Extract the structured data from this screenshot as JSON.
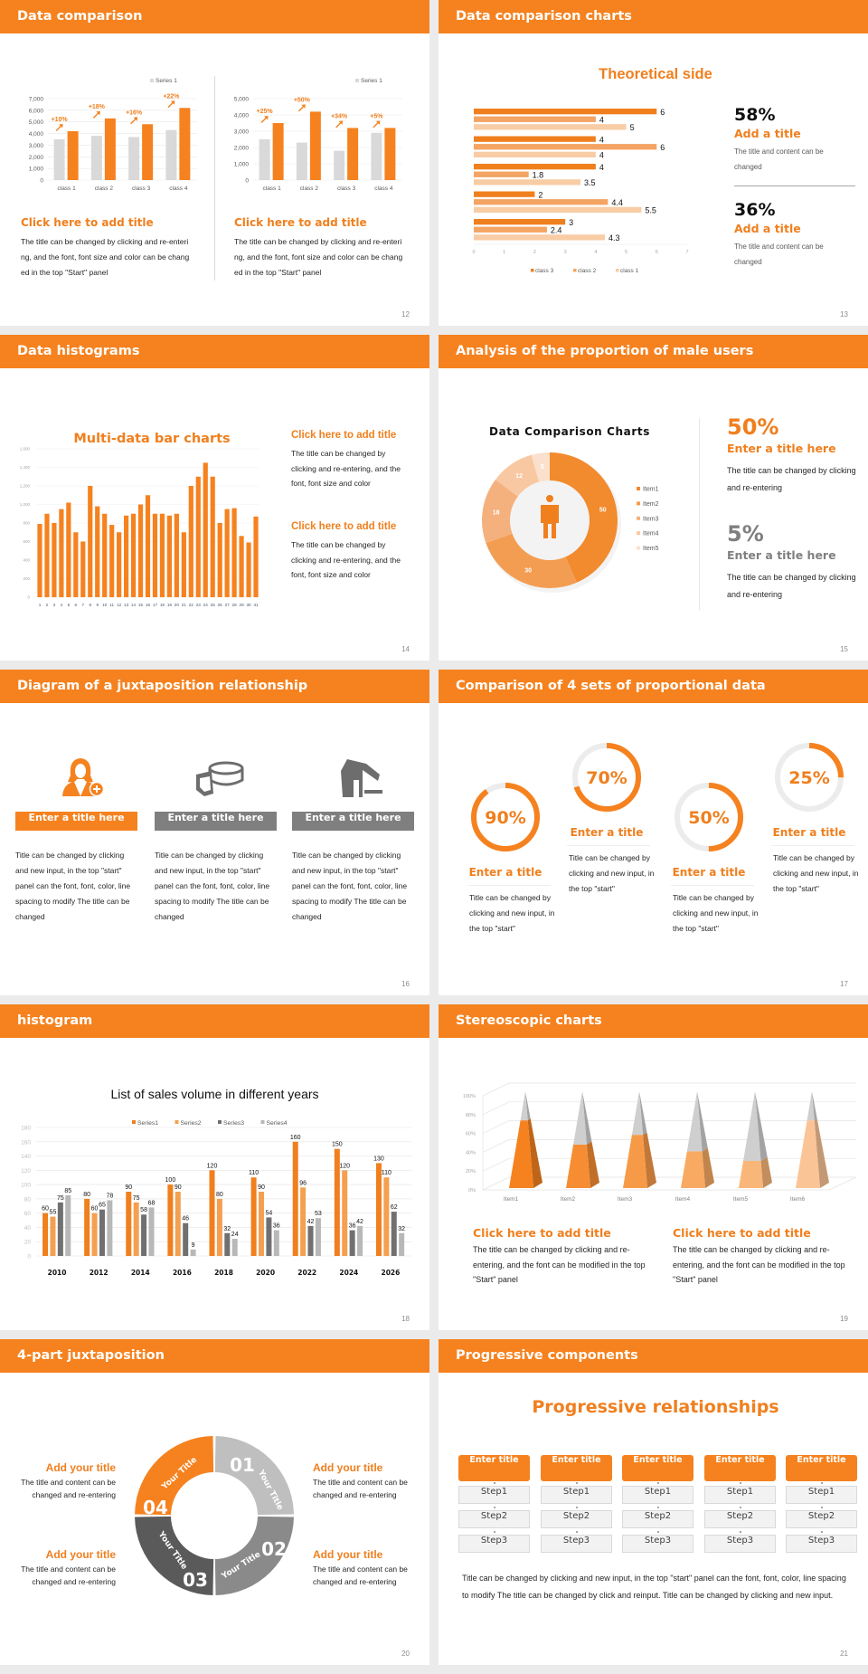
{
  "colors": {
    "accent": "#f5821f",
    "dark_gray": "#595959",
    "mid_gray": "#7f7f7f",
    "light_gray": "#bfbfbf",
    "background": "#ebebeb"
  },
  "slides": [
    {
      "title": "Data comparison",
      "page": "12",
      "blocks": [
        {
          "heading": "Click here to add title",
          "body": "The title can be changed by clicking and re-entering, and the font, font size and color can be changed in the top \"Start\" panel"
        },
        {
          "heading": "Click here to add title",
          "body": "The title can be changed by clicking and re-entering, and the font, font size and color can be changed in the top \"Start\" panel"
        }
      ]
    },
    {
      "title": "Data comparison charts",
      "page": "13",
      "stats": [
        {
          "value": "58%",
          "heading": "Add a title",
          "body": "The title and content can be changed"
        },
        {
          "value": "36%",
          "heading": "Add a title",
          "body": "The title and content can be changed"
        }
      ]
    },
    {
      "title": "Data histograms",
      "page": "14",
      "blocks": [
        {
          "heading": "Click here to add title",
          "body": "The title can be changed by clicking and re-entering, and the font, font size and color"
        },
        {
          "heading": "Click here to add title",
          "body": "The title can be changed by clicking and re-entering, and the font, font size and color"
        }
      ]
    },
    {
      "title": "Analysis of the proportion of male users",
      "page": "15",
      "stats": [
        {
          "value": "50%",
          "heading": "Enter a title here",
          "body": "The title can be changed by clicking and re-entering"
        },
        {
          "value": "5%",
          "heading": "Enter a title here",
          "body": "The title can be changed by clicking and re-entering"
        }
      ]
    },
    {
      "title": "Diagram of a juxtaposition relationship",
      "page": "16",
      "items": [
        {
          "icon": "female-user-add-icon",
          "label": "Enter a title here",
          "body": "Title can be changed by clicking and new input, in the top \"start\" panel can the font, font, color, line spacing to modify The title can be changed"
        },
        {
          "icon": "pie-chart-icon",
          "label": "Enter a title here",
          "body": "Title can be changed by clicking and new input, in the top \"start\" panel can the font, font, color, line spacing to modify The title can be changed"
        },
        {
          "icon": "shop-icon",
          "label": "Enter a title here",
          "body": "Title can be changed by clicking and new input, in the top \"start\" panel can the font, font, color, line spacing to modify The title can be changed"
        }
      ]
    },
    {
      "title": "Comparison of 4 sets of proportional data",
      "page": "17",
      "items": [
        {
          "percent": 90,
          "value": "90%",
          "heading": "Enter a title",
          "body": "Title can be changed by clicking and new input, in the top \"start\""
        },
        {
          "percent": 70,
          "value": "70%",
          "heading": "Enter a title",
          "body": "Title can be changed by clicking and new input, in the top \"start\""
        },
        {
          "percent": 50,
          "value": "50%",
          "heading": "Enter a title",
          "body": "Title can be changed by clicking and new input, in the top \"start\""
        },
        {
          "percent": 25,
          "value": "25%",
          "heading": "Enter a title",
          "body": "Title can be changed by clicking and new input, in the top \"start\""
        }
      ]
    },
    {
      "title": "histogram",
      "page": "18"
    },
    {
      "title": "Stereoscopic charts",
      "page": "19",
      "blocks": [
        {
          "heading": "Click here to add title",
          "body": "The title can be changed by clicking and re-entering, and the font can be modified in the top \"Start\" panel"
        },
        {
          "heading": "Click here to add title",
          "body": "The title can be changed by clicking and re-entering, and the font can be modified in the top \"Start\" panel"
        }
      ]
    },
    {
      "title": "4-part juxtaposition",
      "page": "20",
      "segments": [
        {
          "number": "01",
          "label": "Your Title",
          "color": "#bfbfbf"
        },
        {
          "number": "02",
          "label": "Your Title",
          "color": "#8a8a8a"
        },
        {
          "number": "03",
          "label": "Your Title",
          "color": "#5a5a5a"
        },
        {
          "number": "04",
          "label": "Your Title",
          "color": "#f5821f"
        }
      ],
      "blocks": [
        {
          "heading": "Add your title",
          "body": "The title and content can be changed and re-entering"
        },
        {
          "heading": "Add your title",
          "body": "The title and content can be changed and re-entering"
        },
        {
          "heading": "Add your title",
          "body": "The title and content can be changed and re-entering"
        },
        {
          "heading": "Add your title",
          "body": "The title and content can be changed and re-entering"
        }
      ]
    },
    {
      "title": "Progressive components",
      "page": "21",
      "heading": "Progressive relationships",
      "columns": [
        {
          "title": "Enter title",
          "steps": [
            "Step1",
            "Step2",
            "Step3"
          ]
        },
        {
          "title": "Enter title",
          "steps": [
            "Step1",
            "Step2",
            "Step3"
          ]
        },
        {
          "title": "Enter title",
          "steps": [
            "Step1",
            "Step2",
            "Step3"
          ]
        },
        {
          "title": "Enter title",
          "steps": [
            "Step1",
            "Step2",
            "Step3"
          ]
        },
        {
          "title": "Enter title",
          "steps": [
            "Step1",
            "Step2",
            "Step3"
          ]
        }
      ],
      "body": "Title can be changed by clicking and new input, in the top \"start\" panel can the font, font, color, line spacing to modify The title can be changed by click and reinput. Title can be changed by clicking and new input."
    }
  ],
  "chart_data": [
    {
      "type": "bar",
      "categories": [
        "class 1",
        "class 2",
        "class 3",
        "class 4"
      ],
      "series": [
        {
          "name": "Series 1",
          "values": [
            3500,
            3800,
            3700,
            4300
          ]
        },
        {
          "values": [
            4200,
            5300,
            4800,
            6200
          ]
        }
      ],
      "annotations": [
        "+10%",
        "+18%",
        "+16%",
        "+22%"
      ],
      "ylim": [
        0,
        7000
      ],
      "yticks": [
        "0",
        "1,000",
        "2,000",
        "3,000",
        "4,000",
        "5,000",
        "6,000",
        "7,000"
      ],
      "grid": true,
      "legend": "top-right",
      "colors": [
        "#d9d9d9",
        "#f5821f"
      ]
    },
    {
      "type": "bar",
      "categories": [
        "class 1",
        "class 2",
        "class 3",
        "class 4"
      ],
      "series": [
        {
          "name": "Series 1",
          "values": [
            2500,
            2300,
            1800,
            2900
          ]
        },
        {
          "values": [
            3500,
            4200,
            3200,
            3200
          ]
        }
      ],
      "annotations": [
        "+25%",
        "+50%",
        "+34%",
        "+5%"
      ],
      "ylim": [
        0,
        5000
      ],
      "yticks": [
        "0",
        "1,000",
        "2,000",
        "3,000",
        "4,000",
        "5,000"
      ],
      "grid": true,
      "legend": "top-right",
      "colors": [
        "#d9d9d9",
        "#f5821f"
      ]
    },
    {
      "type": "bar",
      "orientation": "horizontal",
      "title": "Theoretical side",
      "series": [
        {
          "name": "class 3",
          "values": [
            6,
            4,
            4,
            2,
            3
          ]
        },
        {
          "name": "class 2",
          "values": [
            4,
            6,
            1.8,
            4.4,
            2.4
          ]
        },
        {
          "name": "class 1",
          "values": [
            5,
            4,
            3.5,
            5.5,
            4.3
          ]
        }
      ],
      "xlim": [
        0,
        7
      ],
      "xticks": [
        "0",
        "1",
        "2",
        "3",
        "4",
        "5",
        "6",
        "7"
      ],
      "legend": "bottom",
      "colors": [
        "#f07f1e",
        "#f4a463",
        "#f8cca5"
      ]
    },
    {
      "type": "bar",
      "title": "Multi-data bar charts",
      "categories": [
        "1",
        "2",
        "3",
        "4",
        "5",
        "6",
        "7",
        "8",
        "9",
        "10",
        "11",
        "12",
        "13",
        "14",
        "15",
        "16",
        "17",
        "18",
        "19",
        "20",
        "21",
        "22",
        "23",
        "24",
        "25",
        "26",
        "27",
        "28",
        "29",
        "30",
        "31"
      ],
      "values": [
        790,
        900,
        800,
        950,
        1020,
        700,
        600,
        1200,
        980,
        900,
        780,
        700,
        880,
        900,
        1000,
        1100,
        900,
        900,
        880,
        900,
        700,
        1200,
        1300,
        1450,
        1300,
        800,
        950,
        960,
        660,
        590,
        870
      ],
      "ylim": [
        0,
        1600
      ],
      "yticks": [
        "0",
        "200",
        "400",
        "600",
        "800",
        "1,000",
        "1,200",
        "1,400",
        "1,600"
      ],
      "grid": true,
      "colors": [
        "#f5821f"
      ]
    },
    {
      "type": "pie",
      "style": "donut",
      "title": "Data Comparison Charts",
      "categories": [
        "Item1",
        "Item2",
        "Item3",
        "Item4",
        "Item5"
      ],
      "values": [
        50,
        30,
        18,
        12,
        5
      ],
      "legend": "right",
      "colors": [
        "#f28a2e",
        "#f39d52",
        "#f5b17d",
        "#f8c8a2",
        "#fbe1cd"
      ]
    },
    {
      "type": "bar",
      "title": "List of sales volume in different years",
      "categories": [
        "2010",
        "2012",
        "2014",
        "2016",
        "2018",
        "2020",
        "2022",
        "2024",
        "2026"
      ],
      "series": [
        {
          "name": "Series1",
          "values": [
            60,
            80,
            90,
            100,
            120,
            110,
            160,
            150,
            130
          ]
        },
        {
          "name": "Series2",
          "values": [
            55,
            60,
            75,
            90,
            80,
            90,
            96,
            120,
            110
          ]
        },
        {
          "name": "Series3",
          "values": [
            75,
            65,
            58,
            46,
            32,
            54,
            42,
            36,
            62
          ]
        },
        {
          "name": "Series4",
          "values": [
            85,
            78,
            68,
            9,
            24,
            36,
            53,
            42,
            32
          ]
        }
      ],
      "ylim": [
        0,
        180
      ],
      "yticks": [
        "0",
        "20",
        "40",
        "60",
        "80",
        "100",
        "120",
        "140",
        "160",
        "180"
      ],
      "grid": true,
      "legend": "top",
      "colors": [
        "#f07f1e",
        "#f4a050",
        "#707070",
        "#b8b8b8"
      ]
    },
    {
      "type": "bar",
      "style": "3d-pyramid",
      "categories": [
        "Item1",
        "Item2",
        "Item3",
        "Item4",
        "Item5",
        "Item6"
      ],
      "values": [
        70,
        45,
        55,
        38,
        28,
        70
      ],
      "ylim": [
        0,
        100
      ],
      "yticks": [
        "0%",
        "20%",
        "40%",
        "60%",
        "80%",
        "100%"
      ],
      "grid": true,
      "colors": [
        "#f5821f",
        "#f68d33",
        "#f79a48",
        "#f8a962",
        "#f9b679",
        "#fac496"
      ]
    }
  ]
}
